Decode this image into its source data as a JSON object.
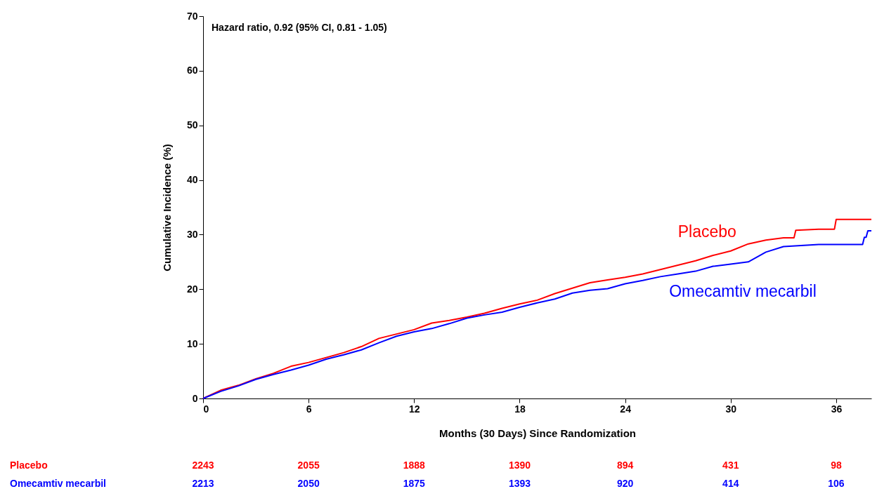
{
  "chart_data": {
    "type": "line",
    "xlabel": "Months (30 Days) Since Randomization",
    "ylabel": "Cumulative Incidence (%)",
    "xlim": [
      0,
      38
    ],
    "xticks": [
      0,
      6,
      12,
      18,
      24,
      30,
      36
    ],
    "ylim": [
      0,
      70
    ],
    "yticks": [
      0,
      10,
      20,
      30,
      40,
      50,
      60,
      70
    ],
    "grid": false,
    "legend": false,
    "line_style": "solid",
    "marker": "none",
    "series": [
      {
        "name": "Placebo",
        "color": "#ff0000",
        "x": [
          0,
          1,
          2,
          3,
          4,
          5,
          6,
          7,
          8,
          9,
          10,
          11,
          12,
          13,
          14,
          15,
          16,
          17,
          18,
          19,
          20,
          21,
          22,
          23,
          24,
          25,
          26,
          27,
          28,
          29,
          30,
          31,
          32,
          33,
          33.6,
          33.7,
          35,
          35.9,
          36,
          38
        ],
        "values": [
          0,
          1.5,
          2.4,
          3.6,
          4.6,
          5.9,
          6.6,
          7.5,
          8.4,
          9.5,
          11.0,
          11.8,
          12.6,
          13.8,
          14.3,
          14.9,
          15.6,
          16.5,
          17.3,
          18.0,
          19.2,
          20.2,
          21.2,
          21.7,
          22.2,
          22.8,
          23.6,
          24.4,
          25.2,
          26.2,
          27.0,
          28.3,
          29.0,
          29.4,
          29.4,
          30.8,
          31.0,
          31.0,
          32.8,
          32.8
        ]
      },
      {
        "name": "Omecamtiv mecarbil",
        "color": "#0000ff",
        "x": [
          0,
          1,
          2,
          3,
          4,
          5,
          6,
          7,
          8,
          9,
          10,
          11,
          12,
          13,
          14,
          15,
          16,
          17,
          18,
          19,
          20,
          21,
          22,
          23,
          24,
          25,
          26,
          27,
          28,
          29,
          30,
          31,
          32,
          33,
          35,
          37.5,
          37.6,
          37.7,
          37.8,
          38
        ],
        "values": [
          0,
          1.3,
          2.3,
          3.5,
          4.4,
          5.2,
          6.1,
          7.2,
          8.0,
          8.9,
          10.2,
          11.4,
          12.2,
          12.8,
          13.7,
          14.7,
          15.3,
          15.8,
          16.7,
          17.5,
          18.2,
          19.3,
          19.8,
          20.1,
          21.0,
          21.6,
          22.3,
          22.8,
          23.3,
          24.2,
          24.6,
          25.0,
          26.8,
          27.8,
          28.2,
          28.2,
          29.5,
          29.5,
          30.7,
          30.7
        ]
      }
    ],
    "annotations": [
      "Hazard ratio, 0.92 (95% CI, 0.81 - 1.05)",
      "Placebo",
      "2243",
      "2055",
      "1888",
      "1390",
      "894",
      "431",
      "98",
      "Omecamtiv mecarbil",
      "2213",
      "2050",
      "1875",
      "1393",
      "920",
      "414",
      "106"
    ]
  }
}
